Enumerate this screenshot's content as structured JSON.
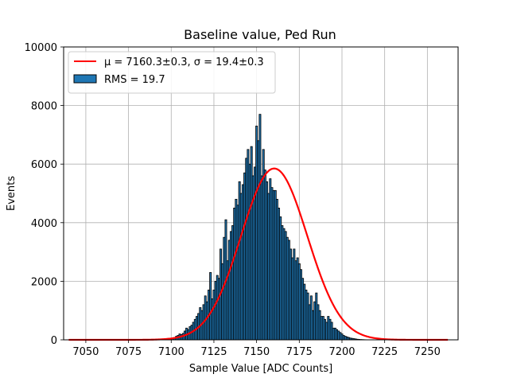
{
  "chart_data": {
    "type": "bar",
    "title": "Baseline value, Ped Run",
    "xlabel": "Sample Value [ADC Counts]",
    "ylabel": "Events",
    "xlim": [
      7037,
      7268
    ],
    "ylim": [
      0,
      10000
    ],
    "xticks": [
      7050,
      7075,
      7100,
      7125,
      7150,
      7175,
      7200,
      7225,
      7250
    ],
    "yticks": [
      0,
      2000,
      4000,
      6000,
      8000,
      10000
    ],
    "grid": true,
    "legend_position": "top-left",
    "legend": {
      "fit_label": "μ = 7160.3±0.3, σ = 19.4±0.3",
      "hist_label": "RMS = 19.7"
    },
    "colors": {
      "bar": "#1f77b4",
      "bar_edge": "#000000",
      "fit": "#ff0000",
      "grid": "#b0b0b0"
    },
    "histogram": {
      "bin_width": 1,
      "x": [
        7100,
        7101,
        7102,
        7103,
        7104,
        7105,
        7106,
        7107,
        7108,
        7109,
        7110,
        7111,
        7112,
        7113,
        7114,
        7115,
        7116,
        7117,
        7118,
        7119,
        7120,
        7121,
        7122,
        7123,
        7124,
        7125,
        7126,
        7127,
        7128,
        7129,
        7130,
        7131,
        7132,
        7133,
        7134,
        7135,
        7136,
        7137,
        7138,
        7139,
        7140,
        7141,
        7142,
        7143,
        7144,
        7145,
        7146,
        7147,
        7148,
        7149,
        7150,
        7151,
        7152,
        7153,
        7154,
        7155,
        7156,
        7157,
        7158,
        7159,
        7160,
        7161,
        7162,
        7163,
        7164,
        7165,
        7166,
        7167,
        7168,
        7169,
        7170,
        7171,
        7172,
        7173,
        7174,
        7175,
        7176,
        7177,
        7178,
        7179,
        7180,
        7181,
        7182,
        7183,
        7184,
        7185,
        7186,
        7187,
        7188,
        7189,
        7190,
        7191,
        7192,
        7193,
        7194,
        7195,
        7196,
        7197,
        7198,
        7199,
        7200,
        7201,
        7202,
        7203,
        7204,
        7205,
        7206,
        7207,
        7208,
        7209,
        7210,
        7211,
        7212,
        7213,
        7214,
        7215,
        7216,
        7217,
        7218,
        7219,
        7220
      ],
      "values": [
        30,
        50,
        80,
        120,
        150,
        200,
        180,
        220,
        300,
        400,
        350,
        450,
        500,
        600,
        700,
        800,
        900,
        1100,
        1000,
        1200,
        1500,
        1300,
        1700,
        2300,
        1400,
        1700,
        2000,
        2200,
        2100,
        3100,
        2600,
        3500,
        4100,
        2700,
        3400,
        3700,
        3900,
        4500,
        4800,
        4600,
        5400,
        5000,
        5300,
        5700,
        6200,
        6500,
        6000,
        6600,
        5600,
        5900,
        7300,
        6800,
        7700,
        5600,
        6500,
        5800,
        5400,
        5000,
        5500,
        5200,
        5100,
        5100,
        4800,
        4500,
        4200,
        3900,
        3800,
        3700,
        3500,
        3400,
        3100,
        2800,
        3100,
        2700,
        2800,
        2600,
        2400,
        2100,
        1900,
        1700,
        1600,
        1200,
        1500,
        1000,
        1300,
        1600,
        1200,
        1000,
        800,
        800,
        700,
        600,
        800,
        700,
        600,
        400,
        400,
        350,
        300,
        250,
        200,
        150,
        120,
        100,
        80,
        60,
        50,
        40,
        30,
        20,
        15,
        10,
        8,
        5,
        3,
        2,
        1,
        1,
        0,
        0,
        0
      ],
      "spikes_extra": []
    },
    "fit": {
      "type": "gaussian",
      "mu": 7160.3,
      "sigma": 19.4,
      "amplitude": 5850,
      "x_range": [
        7040,
        7262
      ]
    }
  }
}
